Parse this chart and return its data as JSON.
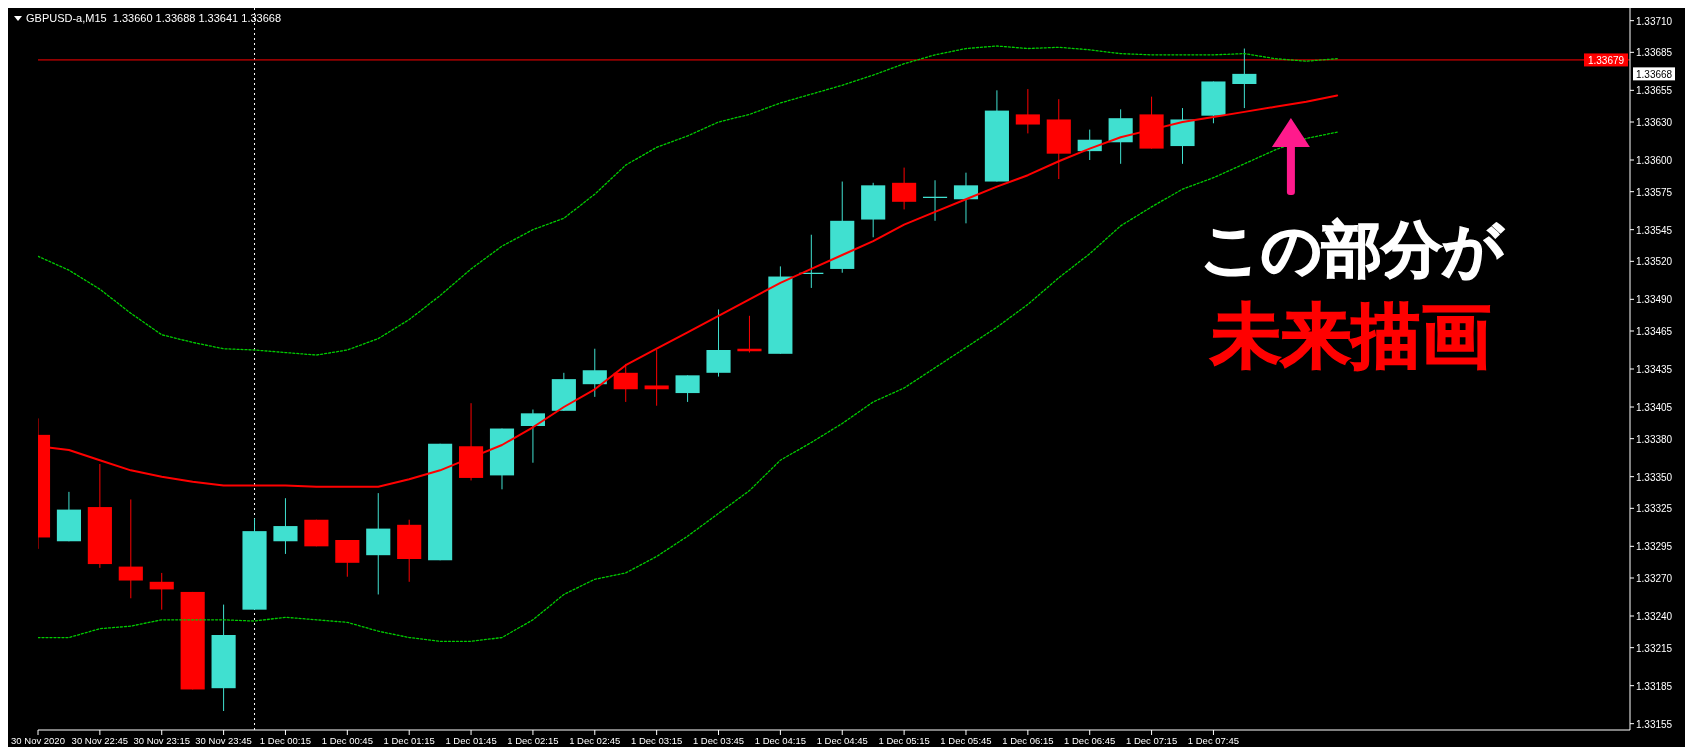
{
  "chart_data": {
    "type": "candlestick",
    "title": "GBPUSD-a,M15  1.33660 1.33688 1.33641 1.33668",
    "x": [
      "2020-11-30T22:15",
      "2020-11-30T22:30",
      "2020-11-30T22:45",
      "2020-11-30T23:00",
      "2020-11-30T23:15",
      "2020-11-30T23:30",
      "2020-11-30T23:45",
      "2020-12-01T00:00",
      "2020-12-01T00:15",
      "2020-12-01T00:30",
      "2020-12-01T00:45",
      "2020-12-01T01:00",
      "2020-12-01T01:15",
      "2020-12-01T01:30",
      "2020-12-01T01:45",
      "2020-12-01T02:00",
      "2020-12-01T02:15",
      "2020-12-01T02:30",
      "2020-12-01T02:45",
      "2020-12-01T03:00",
      "2020-12-01T03:15",
      "2020-12-01T03:30",
      "2020-12-01T03:45",
      "2020-12-01T04:00",
      "2020-12-01T04:15",
      "2020-12-01T04:30",
      "2020-12-01T04:45",
      "2020-12-01T05:00",
      "2020-12-01T05:15",
      "2020-12-01T05:30",
      "2020-12-01T05:45",
      "2020-12-01T06:00",
      "2020-12-01T06:15",
      "2020-12-01T06:30",
      "2020-12-01T06:45",
      "2020-12-01T07:00",
      "2020-12-01T07:15",
      "2020-12-01T07:30",
      "2020-12-01T07:45",
      "2020-12-01T08:00"
    ],
    "ohlc": [
      [
        1.33383,
        1.33396,
        1.33293,
        1.33302
      ],
      [
        1.33299,
        1.33338,
        1.33299,
        1.33324
      ],
      [
        1.33326,
        1.3336,
        1.33278,
        1.33281
      ],
      [
        1.33279,
        1.33332,
        1.33254,
        1.33268
      ],
      [
        1.33267,
        1.33274,
        1.33245,
        1.33261
      ],
      [
        1.33259,
        1.33259,
        1.33182,
        1.33182
      ],
      [
        1.33183,
        1.33249,
        1.33165,
        1.33225
      ],
      [
        1.33245,
        1.33317,
        1.33245,
        1.33307
      ],
      [
        1.33299,
        1.33333,
        1.33289,
        1.33311
      ],
      [
        1.33316,
        1.33316,
        1.33295,
        1.33295
      ],
      [
        1.333,
        1.333,
        1.33271,
        1.33282
      ],
      [
        1.33288,
        1.33337,
        1.33257,
        1.33309
      ],
      [
        1.33312,
        1.33316,
        1.33267,
        1.33285
      ],
      [
        1.33284,
        1.33376,
        1.33284,
        1.33376
      ],
      [
        1.33374,
        1.33408,
        1.33347,
        1.33349
      ],
      [
        1.33351,
        1.33388,
        1.3334,
        1.33388
      ],
      [
        1.3339,
        1.33403,
        1.33361,
        1.334
      ],
      [
        1.33402,
        1.33432,
        1.33402,
        1.33427
      ],
      [
        1.33423,
        1.33451,
        1.33413,
        1.33434
      ],
      [
        1.33432,
        1.33439,
        1.33409,
        1.33419
      ],
      [
        1.33422,
        1.3345,
        1.33406,
        1.33419
      ],
      [
        1.33416,
        1.3343,
        1.33409,
        1.3343
      ],
      [
        1.33432,
        1.33482,
        1.33429,
        1.3345
      ],
      [
        1.33451,
        1.33477,
        1.33448,
        1.33449
      ],
      [
        1.33447,
        1.33516,
        1.33447,
        1.33508
      ],
      [
        1.3351,
        1.33541,
        1.33499,
        1.33511
      ],
      [
        1.33514,
        1.33583,
        1.33511,
        1.33552
      ],
      [
        1.33553,
        1.33582,
        1.33539,
        1.3358
      ],
      [
        1.33582,
        1.33594,
        1.33561,
        1.33567
      ],
      [
        1.3357,
        1.33584,
        1.33552,
        1.33571
      ],
      [
        1.33569,
        1.3359,
        1.3355,
        1.3358
      ],
      [
        1.33583,
        1.33655,
        1.33583,
        1.33639
      ],
      [
        1.33636,
        1.33656,
        1.33621,
        1.33628
      ],
      [
        1.33632,
        1.33648,
        1.33585,
        1.33605
      ],
      [
        1.33607,
        1.33624,
        1.336,
        1.33616
      ],
      [
        1.33614,
        1.3364,
        1.33597,
        1.33633
      ],
      [
        1.33636,
        1.3365,
        1.33609,
        1.33609
      ],
      [
        1.33611,
        1.33641,
        1.33597,
        1.33632
      ],
      [
        1.33635,
        1.33662,
        1.33629,
        1.33662
      ],
      [
        1.3366,
        1.33688,
        1.33641,
        1.33668
      ]
    ],
    "colors": [
      "#ff0000",
      "#40e0d0",
      "#ff0000",
      "#ff0000",
      "#ff0000",
      "#ff0000",
      "#40e0d0",
      "#40e0d0",
      "#40e0d0",
      "#ff0000",
      "#ff0000",
      "#40e0d0",
      "#ff0000",
      "#40e0d0",
      "#ff0000",
      "#40e0d0",
      "#40e0d0",
      "#40e0d0",
      "#40e0d0",
      "#ff0000",
      "#ff0000",
      "#40e0d0",
      "#40e0d0",
      "#ff0000",
      "#40e0d0",
      "#40e0d0",
      "#40e0d0",
      "#40e0d0",
      "#ff0000",
      "#40e0d0",
      "#40e0d0",
      "#40e0d0",
      "#ff0000",
      "#ff0000",
      "#40e0d0",
      "#40e0d0",
      "#ff0000",
      "#40e0d0",
      "#40e0d0",
      "#40e0d0"
    ],
    "series": [
      {
        "type": "line",
        "color": "#ff0000",
        "line_style": "solid",
        "x": [
          "2020-11-30T22:15",
          "2020-11-30T22:30",
          "2020-11-30T22:45",
          "2020-11-30T23:00",
          "2020-11-30T23:15",
          "2020-11-30T23:30",
          "2020-11-30T23:45",
          "2020-12-01T00:00",
          "2020-12-01T00:15",
          "2020-12-01T00:30",
          "2020-12-01T00:45",
          "2020-12-01T01:00",
          "2020-12-01T01:15",
          "2020-12-01T01:30",
          "2020-12-01T01:45",
          "2020-12-01T02:00",
          "2020-12-01T02:15",
          "2020-12-01T02:30",
          "2020-12-01T02:45",
          "2020-12-01T03:00",
          "2020-12-01T03:15",
          "2020-12-01T03:30",
          "2020-12-01T03:45",
          "2020-12-01T04:00",
          "2020-12-01T04:15",
          "2020-12-01T04:30",
          "2020-12-01T04:45",
          "2020-12-01T05:00",
          "2020-12-01T05:15",
          "2020-12-01T05:30",
          "2020-12-01T05:45",
          "2020-12-01T06:00",
          "2020-12-01T06:15",
          "2020-12-01T06:30",
          "2020-12-01T06:45",
          "2020-12-01T07:00",
          "2020-12-01T07:15",
          "2020-12-01T07:30",
          "2020-12-01T07:45",
          "2020-12-01T08:00",
          "2020-12-01T08:15",
          "2020-12-01T08:30",
          "2020-12-01T08:45"
        ],
        "values": [
          1.33374,
          1.33371,
          1.33363,
          1.33355,
          1.3335,
          1.33346,
          1.33343,
          1.33343,
          1.33343,
          1.33342,
          1.33342,
          1.33342,
          1.33348,
          1.33355,
          1.33365,
          1.33375,
          1.33389,
          1.33405,
          1.33419,
          1.33438,
          1.33451,
          1.33464,
          1.33477,
          1.3349,
          1.33503,
          1.33514,
          1.33525,
          1.33536,
          1.33549,
          1.33559,
          1.33569,
          1.33579,
          1.33588,
          1.33599,
          1.33609,
          1.33618,
          1.33624,
          1.3363,
          1.33634,
          1.33638,
          1.33642,
          1.33646,
          1.33651
        ]
      },
      {
        "type": "line",
        "color": "#00cc00",
        "line_style": "dashed",
        "x": [
          "2020-11-30T22:15",
          "2020-11-30T22:30",
          "2020-11-30T22:45",
          "2020-11-30T23:00",
          "2020-11-30T23:15",
          "2020-11-30T23:30",
          "2020-11-30T23:45",
          "2020-12-01T00:00",
          "2020-12-01T00:15",
          "2020-12-01T00:30",
          "2020-12-01T00:45",
          "2020-12-01T01:00",
          "2020-12-01T01:15",
          "2020-12-01T01:30",
          "2020-12-01T01:45",
          "2020-12-01T02:00",
          "2020-12-01T02:15",
          "2020-12-01T02:30",
          "2020-12-01T02:45",
          "2020-12-01T03:00",
          "2020-12-01T03:15",
          "2020-12-01T03:30",
          "2020-12-01T03:45",
          "2020-12-01T04:00",
          "2020-12-01T04:15",
          "2020-12-01T04:30",
          "2020-12-01T04:45",
          "2020-12-01T05:00",
          "2020-12-01T05:15",
          "2020-12-01T05:30",
          "2020-12-01T05:45",
          "2020-12-01T06:00",
          "2020-12-01T06:15",
          "2020-12-01T06:30",
          "2020-12-01T06:45",
          "2020-12-01T07:00",
          "2020-12-01T07:15",
          "2020-12-01T07:30",
          "2020-12-01T07:45",
          "2020-12-01T08:00",
          "2020-12-01T08:15",
          "2020-12-01T08:30",
          "2020-12-01T08:45"
        ],
        "values": [
          1.33524,
          1.33513,
          1.33498,
          1.33479,
          1.33462,
          1.33456,
          1.33451,
          1.3345,
          1.33448,
          1.33446,
          1.3345,
          1.33459,
          1.33474,
          1.33493,
          1.33514,
          1.33532,
          1.33545,
          1.33554,
          1.33573,
          1.33596,
          1.3361,
          1.33619,
          1.3363,
          1.33636,
          1.33645,
          1.33652,
          1.33659,
          1.33667,
          1.33676,
          1.33683,
          1.33688,
          1.3369,
          1.33688,
          1.33689,
          1.33687,
          1.33684,
          1.33683,
          1.33683,
          1.33683,
          1.33684,
          1.3368,
          1.33678,
          1.3368
        ]
      },
      {
        "type": "line",
        "color": "#00cc00",
        "line_style": "dashed",
        "x": [
          "2020-11-30T22:15",
          "2020-11-30T22:30",
          "2020-11-30T22:45",
          "2020-11-30T23:00",
          "2020-11-30T23:15",
          "2020-11-30T23:30",
          "2020-11-30T23:45",
          "2020-12-01T00:00",
          "2020-12-01T00:15",
          "2020-12-01T00:30",
          "2020-12-01T00:45",
          "2020-12-01T01:00",
          "2020-12-01T01:15",
          "2020-12-01T01:30",
          "2020-12-01T01:45",
          "2020-12-01T02:00",
          "2020-12-01T02:15",
          "2020-12-01T02:30",
          "2020-12-01T02:45",
          "2020-12-01T03:00",
          "2020-12-01T03:15",
          "2020-12-01T03:30",
          "2020-12-01T03:45",
          "2020-12-01T04:00",
          "2020-12-01T04:15",
          "2020-12-01T04:30",
          "2020-12-01T04:45",
          "2020-12-01T05:00",
          "2020-12-01T05:15",
          "2020-12-01T05:30",
          "2020-12-01T05:45",
          "2020-12-01T06:00",
          "2020-12-01T06:15",
          "2020-12-01T06:30",
          "2020-12-01T06:45",
          "2020-12-01T07:00",
          "2020-12-01T07:15",
          "2020-12-01T07:30",
          "2020-12-01T07:45",
          "2020-12-01T08:00",
          "2020-12-01T08:15",
          "2020-12-01T08:30",
          "2020-12-01T08:45"
        ],
        "values": [
          1.33223,
          1.33223,
          1.3323,
          1.33232,
          1.33237,
          1.33237,
          1.33237,
          1.33236,
          1.33239,
          1.33237,
          1.33235,
          1.33228,
          1.33223,
          1.3322,
          1.3322,
          1.33223,
          1.33237,
          1.33257,
          1.33269,
          1.33274,
          1.33287,
          1.33303,
          1.33321,
          1.33339,
          1.33363,
          1.33377,
          1.33392,
          1.33409,
          1.3342,
          1.33436,
          1.33452,
          1.33468,
          1.33486,
          1.33507,
          1.33526,
          1.33548,
          1.33563,
          1.33577,
          1.33586,
          1.33597,
          1.33608,
          1.33617,
          1.33622
        ]
      }
    ],
    "xlim": [
      "2020-11-30T22:15",
      "2020-12-01T11:07"
    ],
    "xticks": [
      {
        "value": "2020-11-30T22:15",
        "label": "30 Nov 2020"
      },
      {
        "value": "2020-11-30T22:45",
        "label": "30 Nov 22:45"
      },
      {
        "value": "2020-11-30T23:15",
        "label": "30 Nov 23:15"
      },
      {
        "value": "2020-11-30T23:45",
        "label": "30 Nov 23:45"
      },
      {
        "value": "2020-12-01T00:15",
        "label": "1 Dec 00:15"
      },
      {
        "value": "2020-12-01T00:45",
        "label": "1 Dec 00:45"
      },
      {
        "value": "2020-12-01T01:15",
        "label": "1 Dec 01:15"
      },
      {
        "value": "2020-12-01T01:45",
        "label": "1 Dec 01:45"
      },
      {
        "value": "2020-12-01T02:15",
        "label": "1 Dec 02:15"
      },
      {
        "value": "2020-12-01T02:45",
        "label": "1 Dec 02:45"
      },
      {
        "value": "2020-12-01T03:15",
        "label": "1 Dec 03:15"
      },
      {
        "value": "2020-12-01T03:45",
        "label": "1 Dec 03:45"
      },
      {
        "value": "2020-12-01T04:15",
        "label": "1 Dec 04:15"
      },
      {
        "value": "2020-12-01T04:45",
        "label": "1 Dec 04:45"
      },
      {
        "value": "2020-12-01T05:15",
        "label": "1 Dec 05:15"
      },
      {
        "value": "2020-12-01T05:45",
        "label": "1 Dec 05:45"
      },
      {
        "value": "2020-12-01T06:15",
        "label": "1 Dec 06:15"
      },
      {
        "value": "2020-12-01T06:45",
        "label": "1 Dec 06:45"
      },
      {
        "value": "2020-12-01T07:15",
        "label": "1 Dec 07:15"
      },
      {
        "value": "2020-12-01T07:45",
        "label": "1 Dec 07:45"
      }
    ],
    "ylim": [
      1.3315,
      1.3372
    ],
    "yticks": [
      1.33155,
      1.33185,
      1.33215,
      {
        "value": 1.3324,
        "label": "1.33240"
      },
      {
        "value": 1.3327,
        "label": "1.33270"
      },
      1.33295,
      1.33325,
      {
        "value": 1.3335,
        "label": "1.33350"
      },
      {
        "value": 1.3338,
        "label": "1.33380"
      },
      1.33405,
      1.33435,
      1.33465,
      {
        "value": 1.3349,
        "label": "1.33490"
      },
      {
        "value": 1.3352,
        "label": "1.33520"
      },
      1.33545,
      1.33575,
      {
        "value": 1.336,
        "label": "1.33600"
      },
      {
        "value": 1.3363,
        "label": "1.33630"
      },
      1.33655,
      1.33685,
      {
        "value": 1.3371,
        "label": "1.33710"
      }
    ],
    "ref_lines": [
      {
        "axis": "x",
        "value": "2020-12-01T00:00",
        "color": "#ffffff",
        "line_style": "dotted"
      },
      {
        "axis": "y",
        "value": 1.33679,
        "label": "1.33679",
        "color": "#ff0000",
        "line_style": "solid"
      }
    ],
    "annotations": [
      "1.33668",
      "この部分が",
      "未来描画"
    ]
  }
}
